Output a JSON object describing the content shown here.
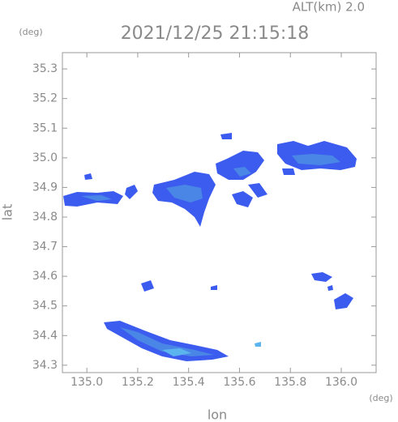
{
  "chart_data": {
    "type": "map",
    "subtitle": "ALT(km)  2.0",
    "title": "2021/12/25 21:15:18",
    "y_unit": "(deg)",
    "x_unit": "(deg)",
    "y_label": "lat",
    "x_label": "lon",
    "xlim": [
      134.904,
      136.137
    ],
    "ylim": [
      34.275,
      35.355
    ],
    "xticks": [
      {
        "value": 135.0,
        "label": "135.0"
      },
      {
        "value": 135.2,
        "label": "135.2"
      },
      {
        "value": 135.4,
        "label": "135.4"
      },
      {
        "value": 135.6,
        "label": "135.6"
      },
      {
        "value": 135.8,
        "label": "135.8"
      },
      {
        "value": 136.0,
        "label": "136.0"
      }
    ],
    "yticks": [
      {
        "value": 34.3,
        "label": "34.3"
      },
      {
        "value": 34.4,
        "label": "34.4"
      },
      {
        "value": 34.5,
        "label": "34.5"
      },
      {
        "value": 34.6,
        "label": "34.6"
      },
      {
        "value": 34.7,
        "label": "34.7"
      },
      {
        "value": 34.8,
        "label": "34.8"
      },
      {
        "value": 34.9,
        "label": "34.9"
      },
      {
        "value": 35.0,
        "label": "35.0"
      },
      {
        "value": 35.1,
        "label": "35.1"
      },
      {
        "value": 35.2,
        "label": "35.2"
      },
      {
        "value": 35.3,
        "label": "35.3"
      }
    ]
  }
}
